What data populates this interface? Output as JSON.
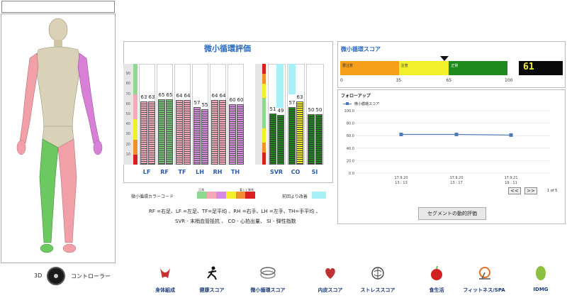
{
  "left": {
    "controller_3d_label": "3D",
    "controller_label": "コントローラー"
  },
  "micro_eval": {
    "title": "微小循環評価",
    "y_ticks": [
      "90",
      "80",
      "70",
      "60",
      "50",
      "40",
      "30",
      "20",
      "10"
    ],
    "group1": [
      {
        "label": "LF",
        "v1": "63",
        "v2": "63",
        "color": "#f4a8b8"
      },
      {
        "label": "RF",
        "v1": "65",
        "v2": "65",
        "color": "#6cc070"
      },
      {
        "label": "TF",
        "v1": "64",
        "v2": "64",
        "color": "#f4a8b8"
      },
      {
        "label": "LH",
        "v1": "57",
        "v2": "55",
        "color": "#d88ae0"
      },
      {
        "label": "RH",
        "v1": "64",
        "v2": "64",
        "color": "#f4a8b8"
      },
      {
        "label": "TH",
        "v1": "60",
        "v2": "60",
        "color": "#d88ae0"
      }
    ],
    "group2": [
      {
        "label": "SVR",
        "v1": "51",
        "v2": "49",
        "color1": "#1e8a1e",
        "color2": "#1e8a1e"
      },
      {
        "label": "CO",
        "v1": "57",
        "v2": "63",
        "color1": "#1e8a1e",
        "color2": "#f2f028"
      },
      {
        "label": "SI",
        "v1": "50",
        "v2": "50",
        "color1": "#1e8a1e",
        "color2": "#1e8a1e"
      }
    ],
    "legend_label": "微小循環カラーコード",
    "legend_small_left": "正常",
    "legend_small_right": "著しく異常",
    "legend_improve": "前回より改善",
    "colors": [
      "#8fd88f",
      "#f4a8b8",
      "#d88ae0",
      "#f2f028",
      "#f09030",
      "#d82020"
    ],
    "improve_color": "#a8f0f8",
    "abbr_line1": "RF =右足、LF =左足、TF=足平均 、RH =右手、LH =左手、TH=手平均 、",
    "abbr_line2": "SVR - 末梢血管抵抗 、 CO - 心拍出量、    SI - 弾性指数"
  },
  "score": {
    "title": "微小循環スコア",
    "segments": [
      {
        "label": "要注意",
        "color": "#f5a018"
      },
      {
        "label": "注意",
        "color": "#f2f028"
      },
      {
        "label": "正常",
        "color": "#1e8a1e"
      }
    ],
    "scale": [
      "0",
      "35",
      "65",
      "100"
    ],
    "value": "61",
    "value_color": "#f2f028"
  },
  "followup": {
    "title": "フォローアップ",
    "legend": "微小循環スコア",
    "y_ticks": [
      "100.0",
      "80.0",
      "60.0",
      "40.0",
      "20.0",
      "0.0"
    ],
    "x_ticks": [
      {
        "d": "17.9.20",
        "t": "13 : 13"
      },
      {
        "d": "17.9.20",
        "t": "13 : 17"
      },
      {
        "d": "17.9.21",
        "t": "19 : 11"
      }
    ],
    "prev": "<<",
    "next": ">>",
    "page": "1 of 5",
    "segment_button": "セグメントの動的評価"
  },
  "chart_data": {
    "type": "line",
    "x": [
      "17.9.20 13:13",
      "17.9.20 13:17",
      "17.9.21 19:11"
    ],
    "series": [
      {
        "name": "微小循環スコア",
        "values": [
          62,
          62,
          61
        ]
      }
    ],
    "ylim": [
      0,
      100
    ]
  },
  "bottom_nav": [
    {
      "label": "身体組成",
      "icon": "body-composition-icon"
    },
    {
      "label": "健康スコア",
      "icon": "runner-icon"
    },
    {
      "label": "微小循環スコア",
      "icon": "vessel-icon"
    },
    {
      "label": "内皮スコア",
      "icon": "heart-icon"
    },
    {
      "label": "ストレススコア",
      "icon": "brain-icon"
    },
    {
      "label": "食生活",
      "icon": "apple-icon"
    },
    {
      "label": "フィットネス/SPA",
      "icon": "fitness-icon"
    },
    {
      "label": "IDMG",
      "icon": "idmg-icon"
    }
  ]
}
